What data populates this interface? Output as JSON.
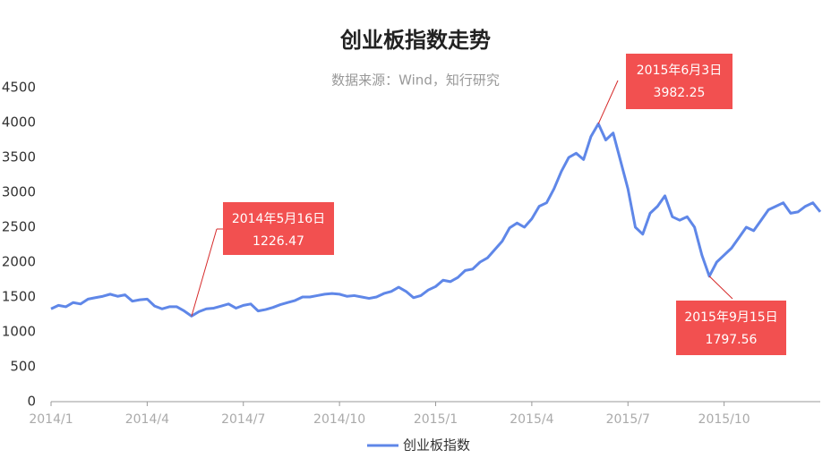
{
  "chart_data": {
    "type": "line",
    "title": "创业板指数走势",
    "subtitle": "数据来源：Wind，知行研究",
    "categories": [
      "2014/1",
      null,
      null,
      null,
      null,
      null,
      null,
      null,
      null,
      null,
      null,
      null,
      null,
      "2014/4",
      null,
      null,
      null,
      null,
      null,
      null,
      null,
      null,
      null,
      null,
      null,
      null,
      "2014/7",
      null,
      null,
      null,
      null,
      null,
      null,
      null,
      null,
      null,
      null,
      null,
      null,
      "2014/10",
      null,
      null,
      null,
      null,
      null,
      null,
      null,
      null,
      null,
      null,
      null,
      null,
      "2015/1",
      null,
      null,
      null,
      null,
      null,
      null,
      null,
      null,
      null,
      null,
      null,
      null,
      "2015/4",
      null,
      null,
      null,
      null,
      null,
      null,
      null,
      null,
      null,
      null,
      null,
      null,
      "2015/7",
      null,
      null,
      null,
      null,
      null,
      null,
      null,
      null,
      null,
      null,
      null,
      null,
      "2015/10",
      null,
      null,
      null,
      null,
      null,
      null,
      null,
      null,
      null,
      null,
      null,
      null,
      null
    ],
    "series": [
      {
        "name": "创业板指数",
        "color": "#5f87e8",
        "values": [
          1330,
          1380,
          1360,
          1420,
          1400,
          1470,
          1490,
          1510,
          1540,
          1510,
          1530,
          1440,
          1460,
          1470,
          1370,
          1330,
          1360,
          1360,
          1300,
          1226.47,
          1290,
          1330,
          1340,
          1370,
          1400,
          1340,
          1380,
          1400,
          1300,
          1320,
          1350,
          1390,
          1420,
          1450,
          1500,
          1500,
          1520,
          1540,
          1550,
          1540,
          1510,
          1520,
          1500,
          1480,
          1500,
          1550,
          1580,
          1640,
          1580,
          1490,
          1520,
          1600,
          1650,
          1740,
          1720,
          1780,
          1880,
          1900,
          2000,
          2060,
          2180,
          2300,
          2490,
          2560,
          2500,
          2620,
          2800,
          2850,
          3050,
          3300,
          3500,
          3560,
          3470,
          3800,
          3982.25,
          3750,
          3850,
          3450,
          3050,
          2500,
          2400,
          2700,
          2800,
          2950,
          2650,
          2600,
          2650,
          2500,
          2100,
          1797.56,
          2000,
          2100,
          2200,
          2350,
          2500,
          2450,
          2600,
          2750,
          2800,
          2850,
          2700,
          2720,
          2800,
          2850,
          2720
        ]
      }
    ],
    "ylim": [
      0,
      4500
    ],
    "yticks": [
      0,
      500,
      1000,
      1500,
      2000,
      2500,
      3000,
      3500,
      4000,
      4500
    ],
    "grid": false,
    "annotations": [
      {
        "text": "2014年5月16日",
        "value": 1226.47
      },
      {
        "text": "2015年6月3日",
        "value": 3982.25
      },
      {
        "text": "2015年9月15日",
        "value": 1797.56
      }
    ],
    "legend": "bottom"
  }
}
